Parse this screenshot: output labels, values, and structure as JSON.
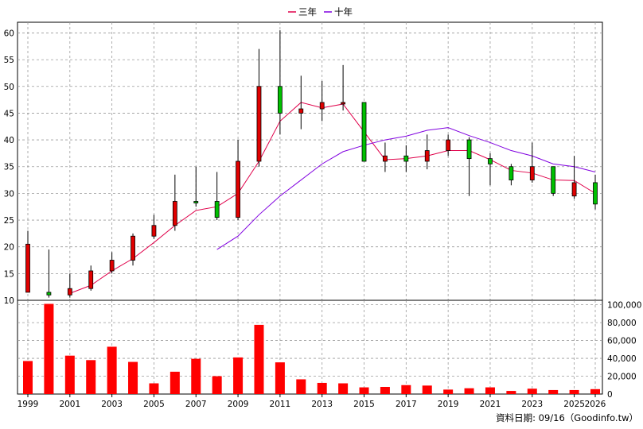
{
  "chart_data": {
    "type": "candlestick-with-volume",
    "legend": [
      {
        "label": "三年",
        "color": "#e0004a"
      },
      {
        "label": "十年",
        "color": "#8000e0"
      }
    ],
    "price_axis": {
      "range": [
        10,
        62
      ],
      "ticks": [
        "10",
        "15",
        "20",
        "25",
        "30",
        "35",
        "40",
        "45",
        "50",
        "55",
        "60"
      ]
    },
    "volume_axis": {
      "range": [
        0,
        105000
      ],
      "ticks": [
        "0",
        "20,000",
        "40,000",
        "60,000",
        "80,000",
        "100,000"
      ]
    },
    "x_axis": {
      "range": [
        1999,
        2026
      ],
      "ticks": [
        "1999",
        "2001",
        "2003",
        "2005",
        "2007",
        "2009",
        "2011",
        "2013",
        "2015",
        "2017",
        "2019",
        "2021",
        "2023",
        "2025",
        "2026"
      ]
    },
    "candles": [
      {
        "year": 1999,
        "open": 11.5,
        "close": 20.5,
        "high": 23.0,
        "low": 11.5
      },
      {
        "year": 2000,
        "open": 11.5,
        "close": 11.0,
        "high": 19.5,
        "low": 10.5
      },
      {
        "year": 2001,
        "open": 11.0,
        "close": 12.2,
        "high": 15.0,
        "low": 10.5
      },
      {
        "year": 2002,
        "open": 12.2,
        "close": 15.5,
        "high": 16.5,
        "low": 11.8
      },
      {
        "year": 2003,
        "open": 15.5,
        "close": 17.5,
        "high": 19.0,
        "low": 15.0
      },
      {
        "year": 2004,
        "open": 17.5,
        "close": 22.0,
        "high": 22.5,
        "low": 16.5
      },
      {
        "year": 2005,
        "open": 22.0,
        "close": 24.0,
        "high": 26.0,
        "low": 21.5
      },
      {
        "year": 2006,
        "open": 24.0,
        "close": 28.5,
        "high": 33.5,
        "low": 23.0
      },
      {
        "year": 2007,
        "open": 28.5,
        "close": 28.3,
        "high": 35.0,
        "low": 27.5
      },
      {
        "year": 2008,
        "open": 28.5,
        "close": 25.5,
        "high": 34.0,
        "low": 25.0
      },
      {
        "year": 2009,
        "open": 25.5,
        "close": 36.0,
        "high": 40.0,
        "low": 25.0
      },
      {
        "year": 2010,
        "open": 36.0,
        "close": 50.0,
        "high": 57.0,
        "low": 35.0
      },
      {
        "year": 2011,
        "open": 50.0,
        "close": 45.0,
        "high": 60.5,
        "low": 41.0
      },
      {
        "year": 2012,
        "open": 45.0,
        "close": 45.8,
        "high": 52.0,
        "low": 42.0
      },
      {
        "year": 2013,
        "open": 45.8,
        "close": 47.0,
        "high": 51.0,
        "low": 43.5
      },
      {
        "year": 2014,
        "open": 47.0,
        "close": 47.0,
        "high": 54.0,
        "low": 45.5
      },
      {
        "year": 2015,
        "open": 47.0,
        "close": 36.0,
        "high": 47.0,
        "low": 36.0
      },
      {
        "year": 2016,
        "open": 36.0,
        "close": 37.0,
        "high": 39.5,
        "low": 34.0
      },
      {
        "year": 2017,
        "open": 37.0,
        "close": 36.0,
        "high": 39.0,
        "low": 34.0
      },
      {
        "year": 2018,
        "open": 36.0,
        "close": 38.0,
        "high": 41.0,
        "low": 34.5
      },
      {
        "year": 2019,
        "open": 38.0,
        "close": 40.0,
        "high": 41.0,
        "low": 37.0
      },
      {
        "year": 2020,
        "open": 40.0,
        "close": 36.5,
        "high": 40.5,
        "low": 29.5
      },
      {
        "year": 2021,
        "open": 36.5,
        "close": 35.5,
        "high": 37.5,
        "low": 31.5
      },
      {
        "year": 2022,
        "open": 35.0,
        "close": 32.5,
        "high": 35.5,
        "low": 31.5
      },
      {
        "year": 2023,
        "open": 32.5,
        "close": 35.0,
        "high": 39.5,
        "low": 32.0
      },
      {
        "year": 2024,
        "open": 35.0,
        "close": 30.0,
        "high": 35.0,
        "low": 29.5
      },
      {
        "year": 2025,
        "open": 29.5,
        "close": 32.0,
        "high": 37.0,
        "low": 29.0
      },
      {
        "year": 2026,
        "open": 32.0,
        "close": 28.0,
        "high": 33.5,
        "low": 27.0
      }
    ],
    "series": [
      {
        "name": "三年",
        "color": "#e0004a",
        "x": [
          2001,
          2002,
          2003,
          2004,
          2005,
          2006,
          2007,
          2008,
          2009,
          2010,
          2011,
          2012,
          2013,
          2014,
          2015,
          2016,
          2017,
          2018,
          2019,
          2020,
          2021,
          2022,
          2023,
          2024,
          2025,
          2026
        ],
        "values": [
          11.3,
          12.8,
          15.5,
          17.8,
          20.8,
          24.0,
          26.8,
          27.5,
          30.0,
          36.0,
          43.5,
          47.0,
          46.0,
          46.7,
          41.5,
          36.3,
          36.5,
          37.0,
          38.0,
          38.0,
          36.3,
          34.3,
          33.8,
          32.5,
          32.4,
          30.0
        ]
      },
      {
        "name": "十年",
        "color": "#8000e0",
        "x": [
          2008,
          2009,
          2010,
          2011,
          2012,
          2013,
          2014,
          2015,
          2016,
          2017,
          2018,
          2019,
          2020,
          2021,
          2022,
          2023,
          2024,
          2025,
          2026
        ],
        "values": [
          19.5,
          22.0,
          26.0,
          29.5,
          32.5,
          35.5,
          37.8,
          39.0,
          40.0,
          40.7,
          41.8,
          42.3,
          40.8,
          39.5,
          38.0,
          37.0,
          35.5,
          35.0,
          34.0
        ]
      }
    ],
    "volume": {
      "years": [
        1999,
        2000,
        2001,
        2002,
        2003,
        2004,
        2005,
        2006,
        2007,
        2008,
        2009,
        2010,
        2011,
        2012,
        2013,
        2014,
        2015,
        2016,
        2017,
        2018,
        2019,
        2020,
        2021,
        2022,
        2023,
        2024,
        2025,
        2026
      ],
      "values": [
        37000,
        101000,
        43000,
        38000,
        53000,
        36000,
        12000,
        25000,
        39500,
        20000,
        41000,
        77500,
        35500,
        16500,
        12500,
        12000,
        7500,
        8000,
        10000,
        9500,
        5000,
        6500,
        7500,
        3500,
        6000,
        4500,
        4500,
        5500
      ],
      "color": "#ff0000"
    },
    "up_color": "#e00000",
    "down_color": "#00c000",
    "grid": true
  },
  "footer": {
    "text": "資料日期: 09/16（Goodinfo.tw）"
  }
}
